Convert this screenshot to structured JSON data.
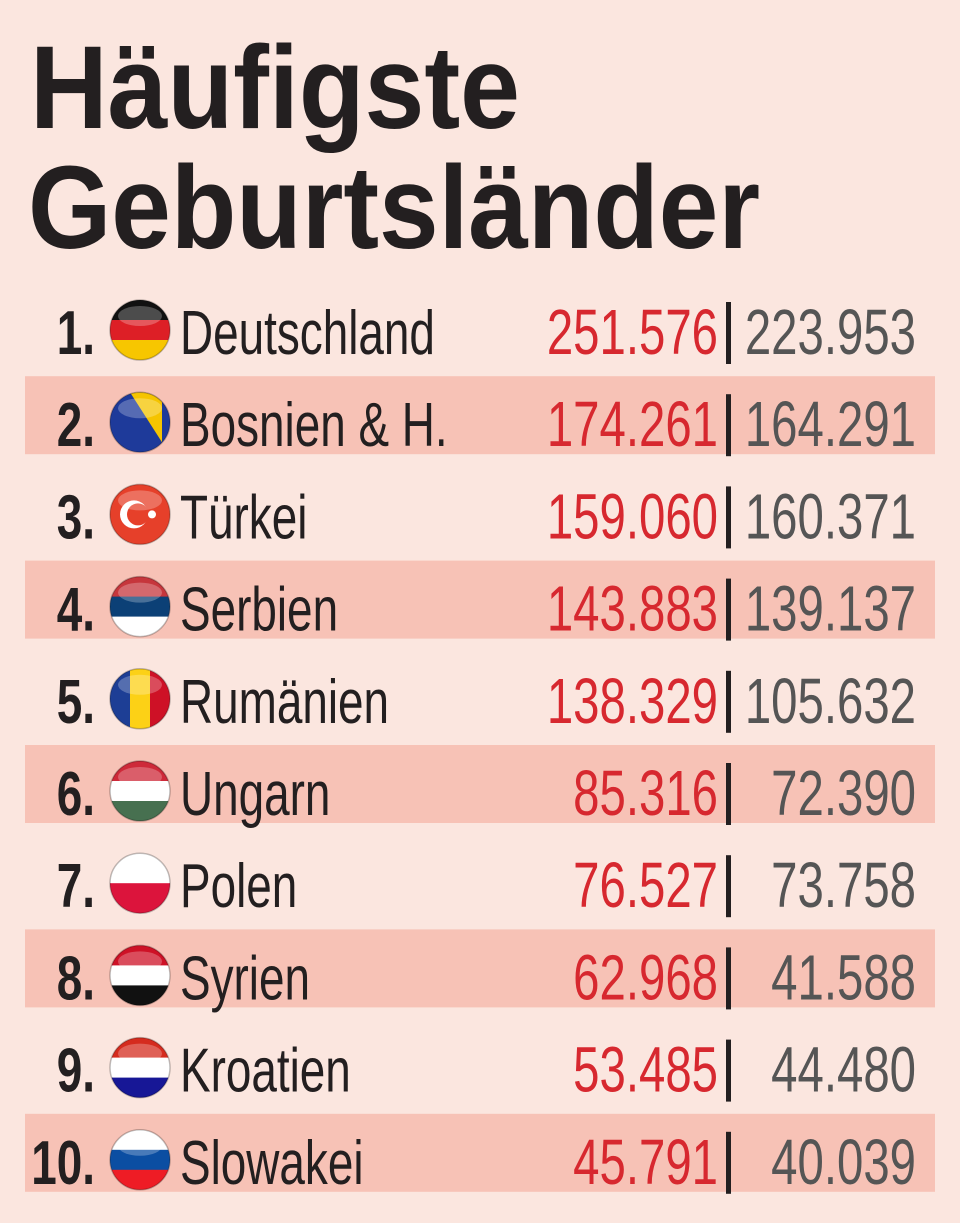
{
  "title": [
    "Häufigste",
    "Geburtsländer"
  ],
  "rows": [
    [
      "1.",
      "Deutschland",
      "251.576",
      "223.953"
    ],
    [
      "2.",
      "Bosnien & H.",
      "174.261",
      "164.291"
    ],
    [
      "3.",
      "Türkei",
      "159.060",
      "160.371"
    ],
    [
      "4.",
      "Serbien",
      "143.883",
      "139.137"
    ],
    [
      "5.",
      "Rumänien",
      "138.329",
      "105.632"
    ],
    [
      "6.",
      "Ungarn",
      "85.316",
      "72.390"
    ],
    [
      "7.",
      "Polen",
      "76.527",
      "73.758"
    ],
    [
      "8.",
      "Syrien",
      "62.968",
      "41.588"
    ],
    [
      "9.",
      "Kroatien",
      "53.485",
      "44.480"
    ],
    [
      "10.",
      "Slowakei",
      "45.791",
      "40.039"
    ]
  ]
}
